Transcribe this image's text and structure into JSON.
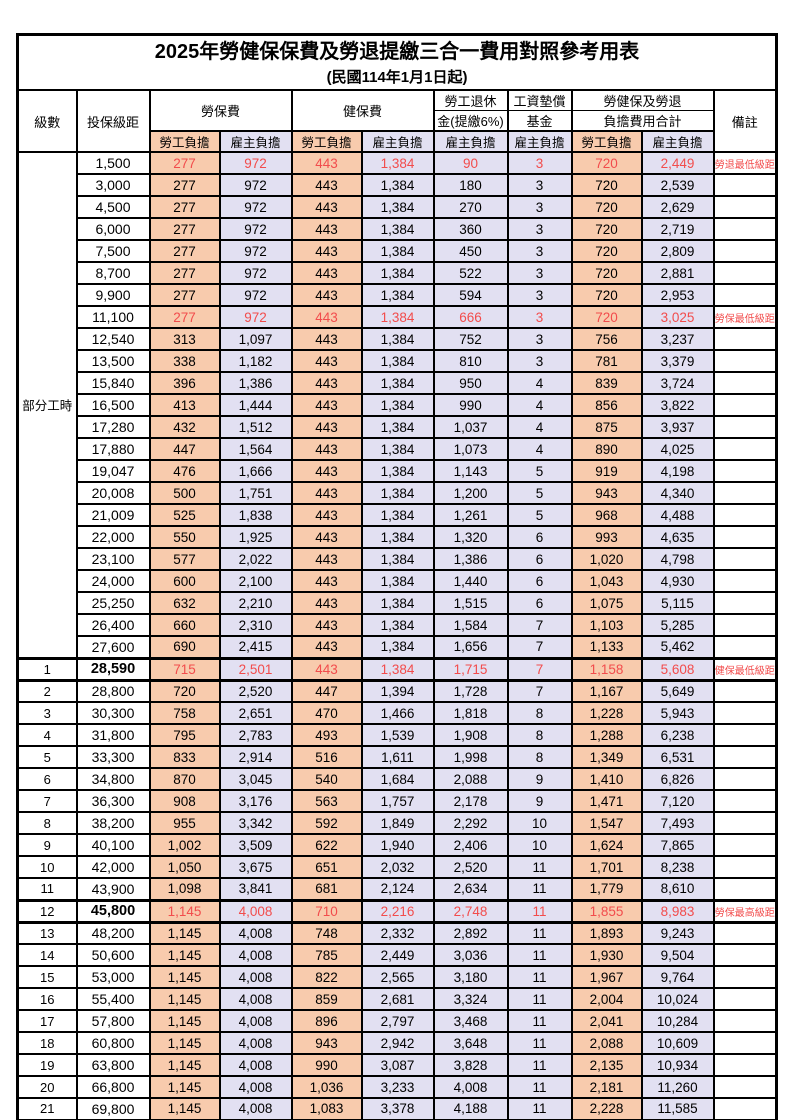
{
  "title": {
    "line1": "2025年勞健保保費及勞退提繳三合一費用對照參考用表",
    "line2": "(民國114年1月1日起)"
  },
  "columns": {
    "level": "級數",
    "bracket": "投保級距",
    "labor": "勞保費",
    "health": "健保費",
    "pension_l1": "勞工退休",
    "pension_l2": "金(提繳6%)",
    "wage_fund_l1": "工資墊償",
    "wage_fund_l2": "基金",
    "total_l1": "勞健保及勞退",
    "total_l2": "負擔費用合計",
    "note": "備註",
    "worker": "勞工負擔",
    "employer": "雇主負擔"
  },
  "part_time": {
    "label": "部分工時",
    "rowspan": 23
  },
  "colors": {
    "worker_bg": "#F8CBAD",
    "employer_bg": "#E2E0F2",
    "highlight_text": "#F24C4C",
    "border": "#000000"
  },
  "rows": [
    {
      "level": "",
      "salary": "1,500",
      "fees": [
        "277",
        "972",
        "443",
        "1,384",
        "90",
        "3",
        "720",
        "2,449"
      ],
      "note": "勞退最低級距",
      "red": true
    },
    {
      "level": "",
      "salary": "3,000",
      "fees": [
        "277",
        "972",
        "443",
        "1,384",
        "180",
        "3",
        "720",
        "2,539"
      ],
      "note": ""
    },
    {
      "level": "",
      "salary": "4,500",
      "fees": [
        "277",
        "972",
        "443",
        "1,384",
        "270",
        "3",
        "720",
        "2,629"
      ],
      "note": ""
    },
    {
      "level": "",
      "salary": "6,000",
      "fees": [
        "277",
        "972",
        "443",
        "1,384",
        "360",
        "3",
        "720",
        "2,719"
      ],
      "note": ""
    },
    {
      "level": "",
      "salary": "7,500",
      "fees": [
        "277",
        "972",
        "443",
        "1,384",
        "450",
        "3",
        "720",
        "2,809"
      ],
      "note": ""
    },
    {
      "level": "",
      "salary": "8,700",
      "fees": [
        "277",
        "972",
        "443",
        "1,384",
        "522",
        "3",
        "720",
        "2,881"
      ],
      "note": ""
    },
    {
      "level": "",
      "salary": "9,900",
      "fees": [
        "277",
        "972",
        "443",
        "1,384",
        "594",
        "3",
        "720",
        "2,953"
      ],
      "note": ""
    },
    {
      "level": "",
      "salary": "11,100",
      "fees": [
        "277",
        "972",
        "443",
        "1,384",
        "666",
        "3",
        "720",
        "3,025"
      ],
      "note": "勞保最低級距",
      "red": true
    },
    {
      "level": "",
      "salary": "12,540",
      "fees": [
        "313",
        "1,097",
        "443",
        "1,384",
        "752",
        "3",
        "756",
        "3,237"
      ],
      "note": ""
    },
    {
      "level": "",
      "salary": "13,500",
      "fees": [
        "338",
        "1,182",
        "443",
        "1,384",
        "810",
        "3",
        "781",
        "3,379"
      ],
      "note": ""
    },
    {
      "level": "",
      "salary": "15,840",
      "fees": [
        "396",
        "1,386",
        "443",
        "1,384",
        "950",
        "4",
        "839",
        "3,724"
      ],
      "note": ""
    },
    {
      "level": "",
      "salary": "16,500",
      "fees": [
        "413",
        "1,444",
        "443",
        "1,384",
        "990",
        "4",
        "856",
        "3,822"
      ],
      "note": ""
    },
    {
      "level": "",
      "salary": "17,280",
      "fees": [
        "432",
        "1,512",
        "443",
        "1,384",
        "1,037",
        "4",
        "875",
        "3,937"
      ],
      "note": ""
    },
    {
      "level": "",
      "salary": "17,880",
      "fees": [
        "447",
        "1,564",
        "443",
        "1,384",
        "1,073",
        "4",
        "890",
        "4,025"
      ],
      "note": ""
    },
    {
      "level": "",
      "salary": "19,047",
      "fees": [
        "476",
        "1,666",
        "443",
        "1,384",
        "1,143",
        "5",
        "919",
        "4,198"
      ],
      "note": ""
    },
    {
      "level": "",
      "salary": "20,008",
      "fees": [
        "500",
        "1,751",
        "443",
        "1,384",
        "1,200",
        "5",
        "943",
        "4,340"
      ],
      "note": ""
    },
    {
      "level": "",
      "salary": "21,009",
      "fees": [
        "525",
        "1,838",
        "443",
        "1,384",
        "1,261",
        "5",
        "968",
        "4,488"
      ],
      "note": ""
    },
    {
      "level": "",
      "salary": "22,000",
      "fees": [
        "550",
        "1,925",
        "443",
        "1,384",
        "1,320",
        "6",
        "993",
        "4,635"
      ],
      "note": ""
    },
    {
      "level": "",
      "salary": "23,100",
      "fees": [
        "577",
        "2,022",
        "443",
        "1,384",
        "1,386",
        "6",
        "1,020",
        "4,798"
      ],
      "note": ""
    },
    {
      "level": "",
      "salary": "24,000",
      "fees": [
        "600",
        "2,100",
        "443",
        "1,384",
        "1,440",
        "6",
        "1,043",
        "4,930"
      ],
      "note": ""
    },
    {
      "level": "",
      "salary": "25,250",
      "fees": [
        "632",
        "2,210",
        "443",
        "1,384",
        "1,515",
        "6",
        "1,075",
        "5,115"
      ],
      "note": ""
    },
    {
      "level": "",
      "salary": "26,400",
      "fees": [
        "660",
        "2,310",
        "443",
        "1,384",
        "1,584",
        "7",
        "1,103",
        "5,285"
      ],
      "note": ""
    },
    {
      "level": "",
      "salary": "27,600",
      "fees": [
        "690",
        "2,415",
        "443",
        "1,384",
        "1,656",
        "7",
        "1,133",
        "5,462"
      ],
      "note": ""
    },
    {
      "level": "1",
      "salary": "28,590",
      "fees": [
        "715",
        "2,501",
        "443",
        "1,384",
        "1,715",
        "7",
        "1,158",
        "5,608"
      ],
      "note": "健保最低級距",
      "red": true,
      "bold": true,
      "key": true
    },
    {
      "level": "2",
      "salary": "28,800",
      "fees": [
        "720",
        "2,520",
        "447",
        "1,394",
        "1,728",
        "7",
        "1,167",
        "5,649"
      ],
      "note": ""
    },
    {
      "level": "3",
      "salary": "30,300",
      "fees": [
        "758",
        "2,651",
        "470",
        "1,466",
        "1,818",
        "8",
        "1,228",
        "5,943"
      ],
      "note": ""
    },
    {
      "level": "4",
      "salary": "31,800",
      "fees": [
        "795",
        "2,783",
        "493",
        "1,539",
        "1,908",
        "8",
        "1,288",
        "6,238"
      ],
      "note": ""
    },
    {
      "level": "5",
      "salary": "33,300",
      "fees": [
        "833",
        "2,914",
        "516",
        "1,611",
        "1,998",
        "8",
        "1,349",
        "6,531"
      ],
      "note": ""
    },
    {
      "level": "6",
      "salary": "34,800",
      "fees": [
        "870",
        "3,045",
        "540",
        "1,684",
        "2,088",
        "9",
        "1,410",
        "6,826"
      ],
      "note": ""
    },
    {
      "level": "7",
      "salary": "36,300",
      "fees": [
        "908",
        "3,176",
        "563",
        "1,757",
        "2,178",
        "9",
        "1,471",
        "7,120"
      ],
      "note": ""
    },
    {
      "level": "8",
      "salary": "38,200",
      "fees": [
        "955",
        "3,342",
        "592",
        "1,849",
        "2,292",
        "10",
        "1,547",
        "7,493"
      ],
      "note": ""
    },
    {
      "level": "9",
      "salary": "40,100",
      "fees": [
        "1,002",
        "3,509",
        "622",
        "1,940",
        "2,406",
        "10",
        "1,624",
        "7,865"
      ],
      "note": ""
    },
    {
      "level": "10",
      "salary": "42,000",
      "fees": [
        "1,050",
        "3,675",
        "651",
        "2,032",
        "2,520",
        "11",
        "1,701",
        "8,238"
      ],
      "note": ""
    },
    {
      "level": "11",
      "salary": "43,900",
      "fees": [
        "1,098",
        "3,841",
        "681",
        "2,124",
        "2,634",
        "11",
        "1,779",
        "8,610"
      ],
      "note": ""
    },
    {
      "level": "12",
      "salary": "45,800",
      "fees": [
        "1,145",
        "4,008",
        "710",
        "2,216",
        "2,748",
        "11",
        "1,855",
        "8,983"
      ],
      "note": "勞保最高級距",
      "red": true,
      "bold": true,
      "key": true
    },
    {
      "level": "13",
      "salary": "48,200",
      "fees": [
        "1,145",
        "4,008",
        "748",
        "2,332",
        "2,892",
        "11",
        "1,893",
        "9,243"
      ],
      "note": ""
    },
    {
      "level": "14",
      "salary": "50,600",
      "fees": [
        "1,145",
        "4,008",
        "785",
        "2,449",
        "3,036",
        "11",
        "1,930",
        "9,504"
      ],
      "note": ""
    },
    {
      "level": "15",
      "salary": "53,000",
      "fees": [
        "1,145",
        "4,008",
        "822",
        "2,565",
        "3,180",
        "11",
        "1,967",
        "9,764"
      ],
      "note": ""
    },
    {
      "level": "16",
      "salary": "55,400",
      "fees": [
        "1,145",
        "4,008",
        "859",
        "2,681",
        "3,324",
        "11",
        "2,004",
        "10,024"
      ],
      "note": ""
    },
    {
      "level": "17",
      "salary": "57,800",
      "fees": [
        "1,145",
        "4,008",
        "896",
        "2,797",
        "3,468",
        "11",
        "2,041",
        "10,284"
      ],
      "note": ""
    },
    {
      "level": "18",
      "salary": "60,800",
      "fees": [
        "1,145",
        "4,008",
        "943",
        "2,942",
        "3,648",
        "11",
        "2,088",
        "10,609"
      ],
      "note": ""
    },
    {
      "level": "19",
      "salary": "63,800",
      "fees": [
        "1,145",
        "4,008",
        "990",
        "3,087",
        "3,828",
        "11",
        "2,135",
        "10,934"
      ],
      "note": ""
    },
    {
      "level": "20",
      "salary": "66,800",
      "fees": [
        "1,145",
        "4,008",
        "1,036",
        "3,233",
        "4,008",
        "11",
        "2,181",
        "11,260"
      ],
      "note": ""
    },
    {
      "level": "21",
      "salary": "69,800",
      "fees": [
        "1,145",
        "4,008",
        "1,083",
        "3,378",
        "4,188",
        "11",
        "2,228",
        "11,585"
      ],
      "note": ""
    }
  ]
}
